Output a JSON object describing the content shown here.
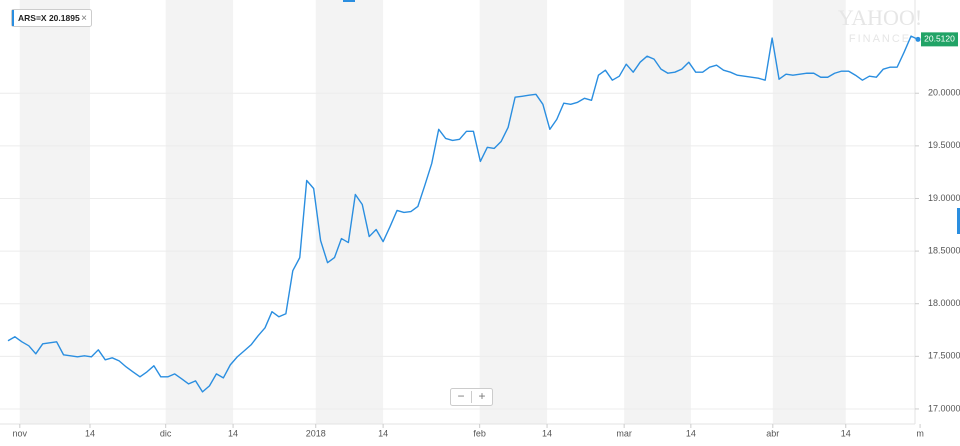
{
  "chart_data": {
    "type": "line",
    "legend_label": "ARS=X 20.1895",
    "legend_close": "×",
    "watermark": [
      "YAHOO!",
      "FINANCE"
    ],
    "zoom_controls": [
      "−",
      "+"
    ],
    "color": "#2a8ee0",
    "last_price": {
      "value": 20.512,
      "label": "20.5120"
    },
    "last_price_color": "#21a366",
    "band_color": "#f3f3f3",
    "values": [
      17.648,
      17.686,
      17.638,
      17.6,
      17.524,
      17.619,
      17.629,
      17.638,
      17.514,
      17.505,
      17.495,
      17.505,
      17.495,
      17.562,
      17.467,
      17.486,
      17.457,
      17.4,
      17.352,
      17.305,
      17.352,
      17.41,
      17.305,
      17.305,
      17.333,
      17.286,
      17.238,
      17.267,
      17.162,
      17.219,
      17.333,
      17.295,
      17.419,
      17.495,
      17.552,
      17.61,
      17.695,
      17.771,
      17.924,
      17.876,
      17.905,
      18.314,
      18.438,
      19.171,
      19.095,
      18.6,
      18.39,
      18.438,
      18.619,
      18.581,
      19.038,
      18.943,
      18.638,
      18.705,
      18.59,
      18.733,
      18.886,
      18.867,
      18.876,
      18.924,
      19.124,
      19.333,
      19.657,
      19.571,
      19.552,
      19.562,
      19.638,
      19.638,
      19.352,
      19.486,
      19.476,
      19.543,
      19.676,
      19.962,
      19.971,
      19.981,
      19.99,
      19.895,
      19.657,
      19.752,
      19.905,
      19.895,
      19.914,
      19.952,
      19.933,
      20.171,
      20.219,
      20.124,
      20.162,
      20.276,
      20.2,
      20.295,
      20.352,
      20.324,
      20.229,
      20.19,
      20.2,
      20.229,
      20.295,
      20.2,
      20.2,
      20.248,
      20.267,
      20.219,
      20.2,
      20.171,
      20.162,
      20.152,
      20.143,
      20.124,
      20.524,
      20.133,
      20.181,
      20.171,
      20.181,
      20.19,
      20.19,
      20.152,
      20.152,
      20.19,
      20.21,
      20.21,
      20.171,
      20.124,
      20.162,
      20.152,
      20.229,
      20.248,
      20.248,
      20.39,
      20.543,
      20.512
    ],
    "xlim": [
      0,
      131
    ],
    "xticks": [
      {
        "value": 1.7,
        "label": "nov"
      },
      {
        "value": 11.8,
        "label": "14"
      },
      {
        "value": 22.7,
        "label": "dic"
      },
      {
        "value": 32.4,
        "label": "14"
      },
      {
        "value": 44.3,
        "label": "2018"
      },
      {
        "value": 54.0,
        "label": "14"
      },
      {
        "value": 67.9,
        "label": "feb"
      },
      {
        "value": 77.6,
        "label": "14"
      },
      {
        "value": 88.7,
        "label": "mar"
      },
      {
        "value": 98.3,
        "label": "14"
      },
      {
        "value": 110.1,
        "label": "abr"
      },
      {
        "value": 120.6,
        "label": "14"
      },
      {
        "value": 131.3,
        "label": "m"
      }
    ],
    "ylim": [
      16.857,
      20.886
    ],
    "yticks": [
      {
        "value": 17,
        "label": "17.0000"
      },
      {
        "value": 17.5,
        "label": "17.5000"
      },
      {
        "value": 18,
        "label": "18.0000"
      },
      {
        "value": 18.5,
        "label": "18.5000"
      },
      {
        "value": 19,
        "label": "19.0000"
      },
      {
        "value": 19.5,
        "label": "19.5000"
      },
      {
        "value": 20,
        "label": "20.0000"
      }
    ],
    "grid": true
  }
}
